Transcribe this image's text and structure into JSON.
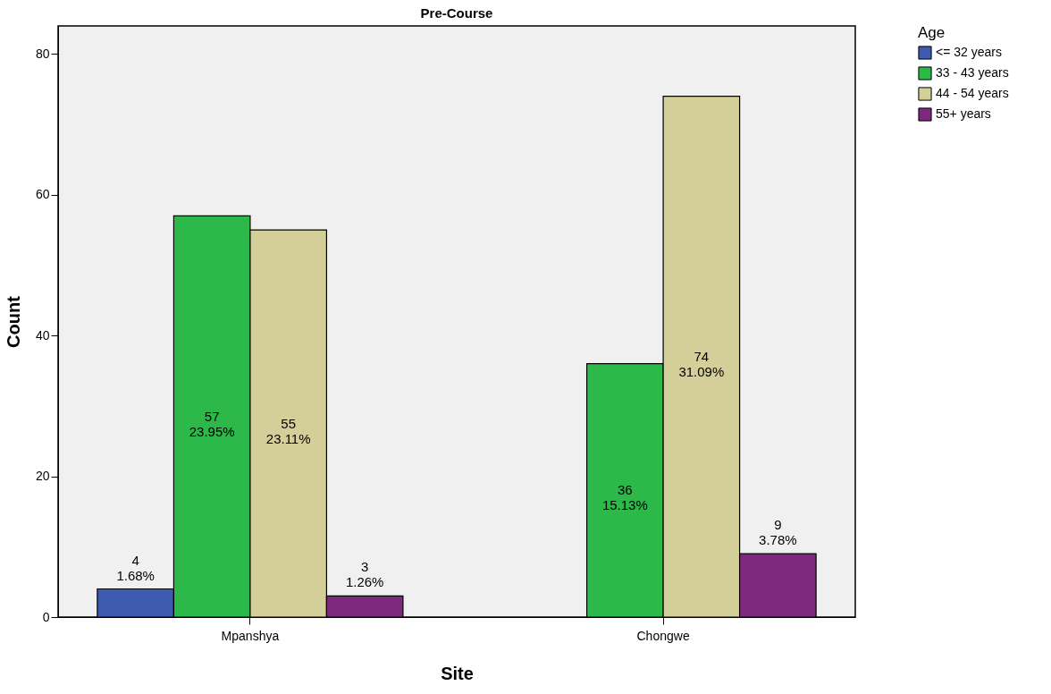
{
  "chart_data": {
    "type": "bar",
    "title": "Pre-Course",
    "xlabel": "Site",
    "ylabel": "Count",
    "legend_title": "Age",
    "categories": [
      "Mpanshya",
      "Chongwe"
    ],
    "series": [
      {
        "name": "<= 32 years",
        "color": "#3e5bb0",
        "values": [
          4,
          null
        ],
        "value_labels": [
          "4\n1.68%",
          null
        ]
      },
      {
        "name": "33 - 43 years",
        "color": "#2db84a",
        "values": [
          57,
          36
        ],
        "value_labels": [
          "57\n23.95%",
          "36\n15.13%"
        ]
      },
      {
        "name": "44 - 54 years",
        "color": "#d4cf98",
        "values": [
          55,
          74
        ],
        "value_labels": [
          "55\n23.11%",
          "74\n31.09%"
        ]
      },
      {
        "name": "55+ years",
        "color": "#7d2a7e",
        "values": [
          3,
          9
        ],
        "value_labels": [
          "3\n1.26%",
          "9\n3.78%"
        ]
      }
    ],
    "ylim": [
      0,
      84
    ],
    "yticks": [
      0,
      20,
      40,
      60,
      80
    ],
    "grid": false,
    "legend": "top right"
  }
}
